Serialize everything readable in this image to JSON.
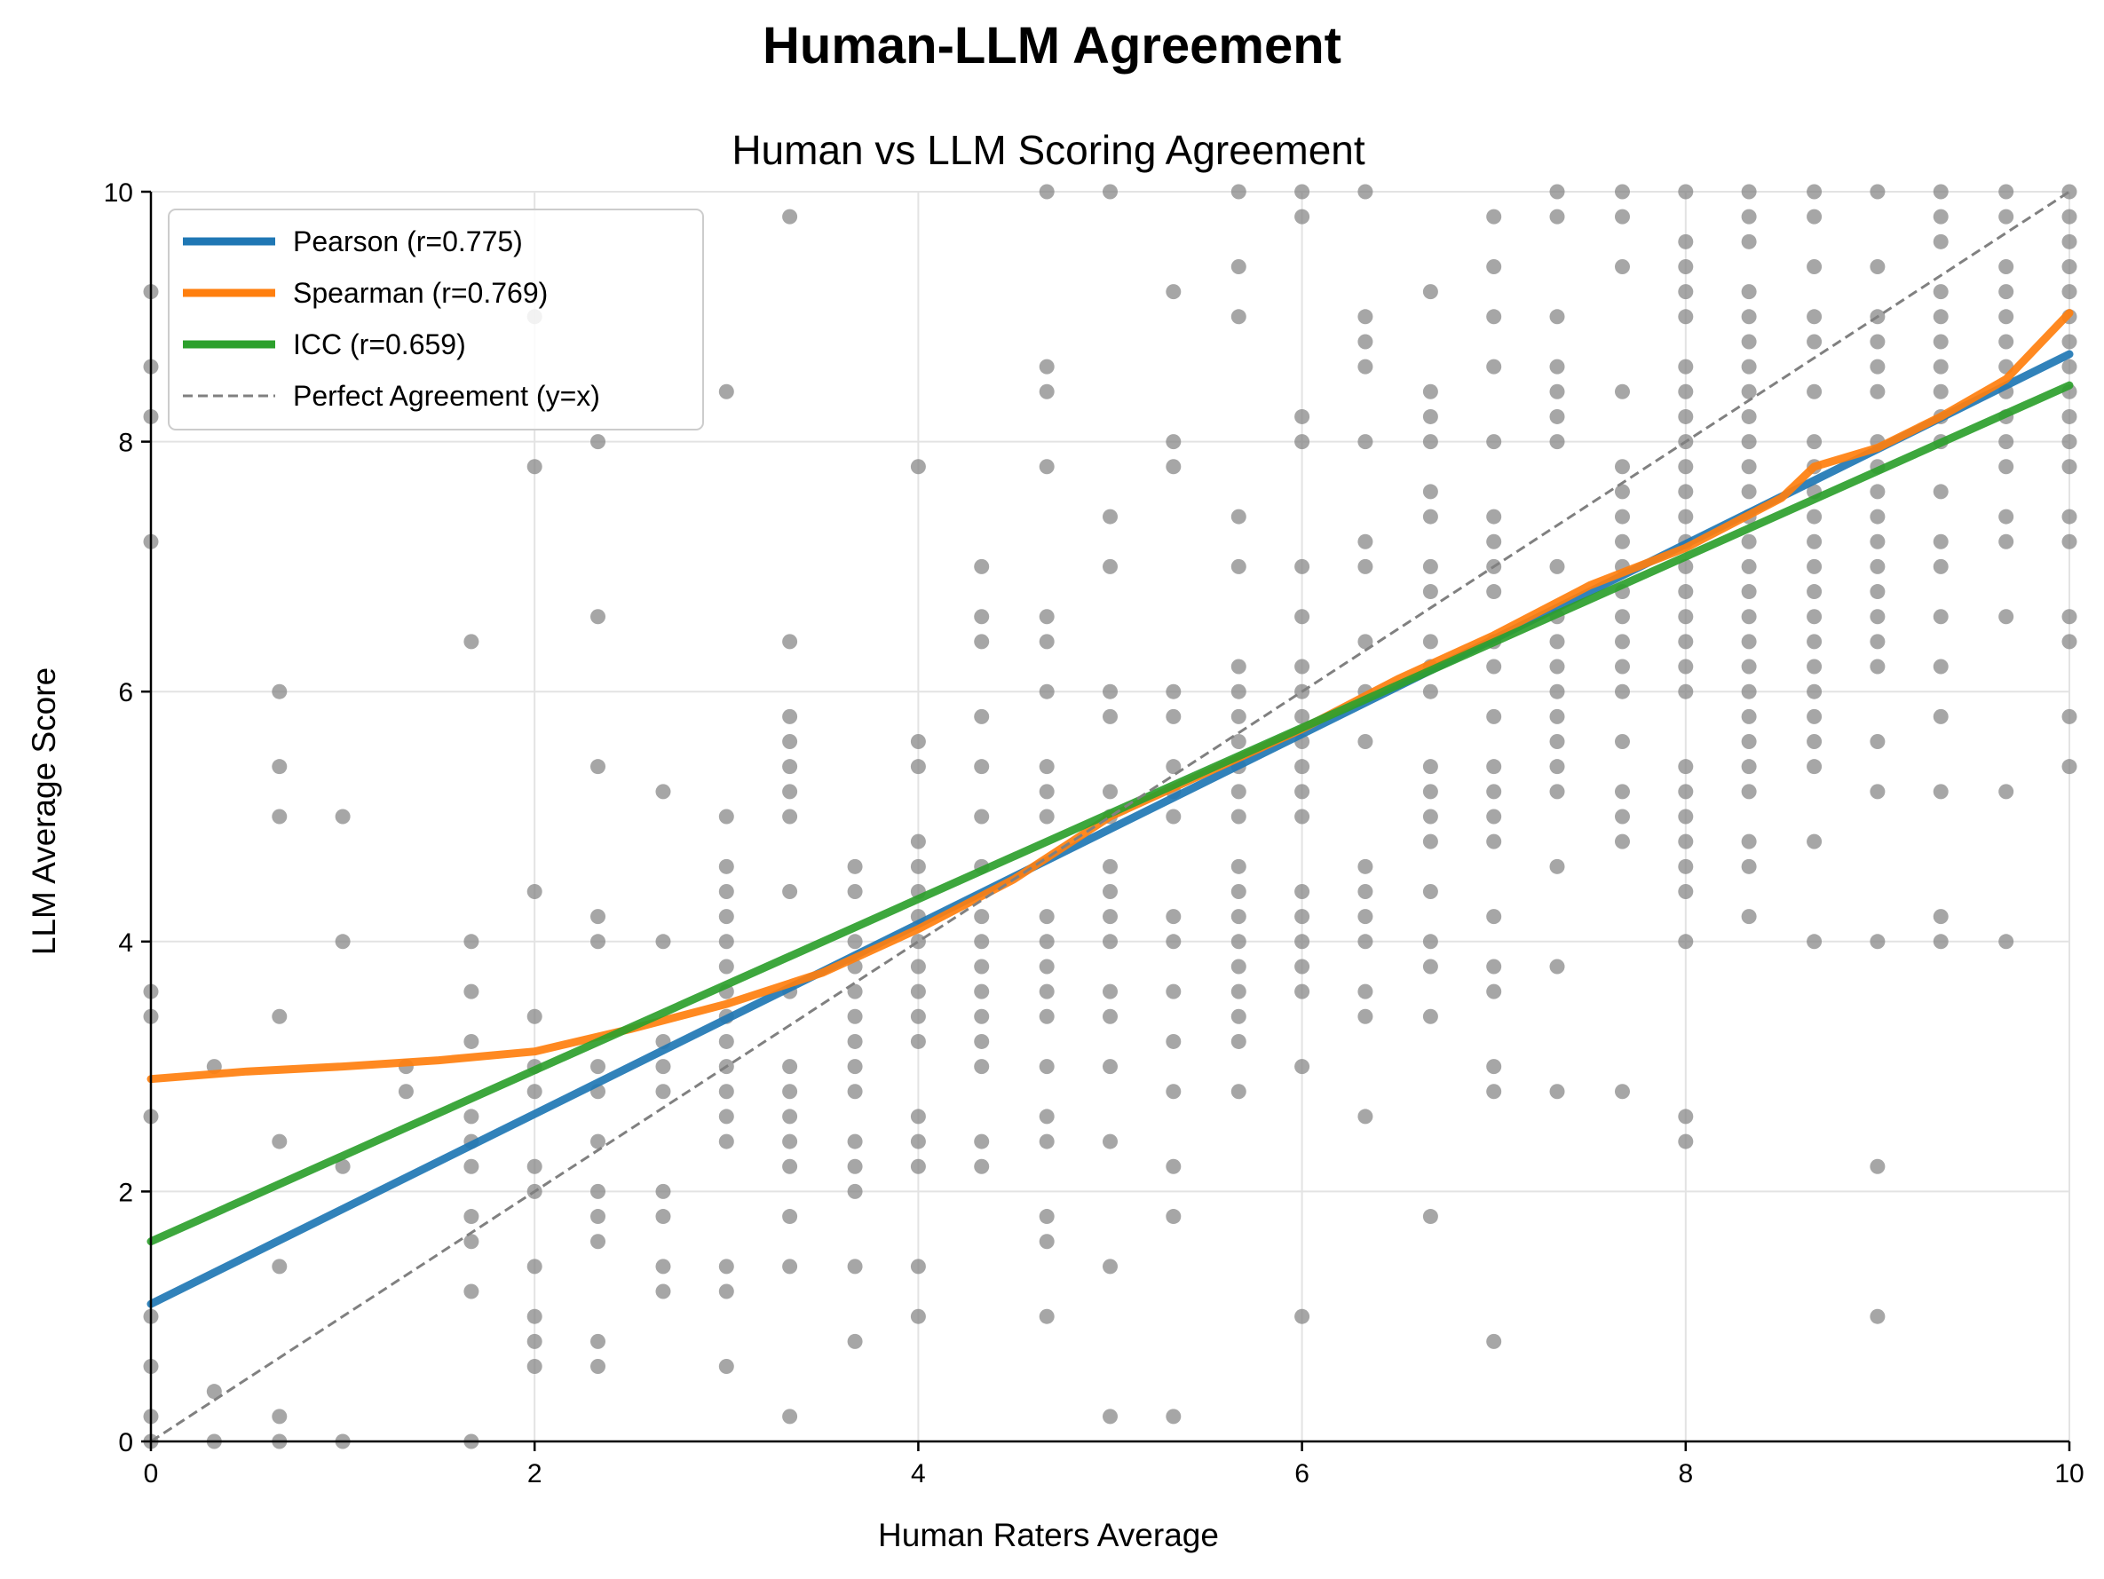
{
  "figure_title": "Human-LLM Agreement",
  "chart_data": {
    "type": "scatter",
    "title": "Human vs LLM Scoring Agreement",
    "xlabel": "Human Raters Average",
    "ylabel": "LLM Average Score",
    "xlim": [
      0,
      10
    ],
    "ylim": [
      0,
      10
    ],
    "xticks": [
      "0",
      "2",
      "4",
      "6",
      "8",
      "10"
    ],
    "yticks": [
      "0",
      "2",
      "4",
      "6",
      "8",
      "10"
    ],
    "grid": true,
    "legend_position": "upper-left",
    "points": {
      "name": "",
      "color": "#808080",
      "x_levels": [
        0,
        0.33,
        0.67,
        1,
        1.33,
        1.67,
        2,
        2.33,
        2.67,
        3,
        3.33,
        3.67,
        4,
        4.33,
        4.67,
        5,
        5.33,
        5.67,
        6,
        6.33,
        6.67,
        7,
        7.33,
        7.67,
        8,
        8.33,
        8.67,
        9,
        9.33,
        9.67,
        10
      ],
      "y_values": [
        [
          0,
          0.2,
          0.6,
          1.0,
          2.6,
          3.4,
          3.6,
          7.2,
          8.2,
          8.6,
          9.2
        ],
        [
          0,
          0.4,
          3.0
        ],
        [
          0,
          0.2,
          1.4,
          2.4,
          3.4,
          5.0,
          5.4,
          6.0
        ],
        [
          0,
          2.2,
          4.0,
          5.0
        ],
        [
          2.8,
          3.0
        ],
        [
          0,
          1.2,
          1.6,
          1.8,
          2.2,
          2.4,
          2.6,
          3.2,
          3.6,
          4.0,
          6.4
        ],
        [
          0.6,
          0.8,
          1.0,
          1.4,
          2.0,
          2.2,
          2.8,
          3.0,
          3.4,
          4.4,
          7.8,
          9.0
        ],
        [
          0.6,
          0.8,
          1.6,
          1.8,
          2.0,
          2.4,
          2.8,
          3.0,
          4.0,
          4.2,
          5.4,
          6.6,
          8.0
        ],
        [
          1.2,
          1.4,
          1.8,
          2.0,
          2.8,
          3.0,
          3.2,
          4.0,
          5.2
        ],
        [
          0.6,
          1.2,
          1.4,
          2.4,
          2.6,
          2.8,
          3.0,
          3.2,
          3.4,
          3.6,
          3.8,
          4.0,
          4.2,
          4.4,
          4.6,
          5.0,
          8.4
        ],
        [
          0.2,
          1.4,
          1.8,
          2.2,
          2.4,
          2.6,
          2.8,
          3.0,
          3.6,
          4.4,
          5.0,
          5.2,
          5.4,
          5.6,
          5.8,
          6.4,
          9.8
        ],
        [
          0.8,
          1.4,
          2.0,
          2.2,
          2.4,
          2.8,
          3.0,
          3.2,
          3.4,
          3.6,
          3.8,
          4.0,
          4.4,
          4.6
        ],
        [
          1.0,
          1.4,
          2.2,
          2.4,
          2.6,
          3.2,
          3.4,
          3.6,
          3.8,
          4.0,
          4.2,
          4.4,
          4.6,
          4.8,
          5.4,
          5.6,
          7.8
        ],
        [
          2.2,
          2.4,
          3.0,
          3.2,
          3.4,
          3.6,
          3.8,
          4.0,
          4.2,
          4.6,
          5.0,
          5.4,
          5.8,
          6.4,
          6.6,
          7.0
        ],
        [
          1.0,
          1.6,
          1.8,
          2.4,
          2.6,
          3.0,
          3.4,
          3.6,
          3.8,
          4.0,
          4.2,
          5.0,
          5.2,
          5.4,
          6.0,
          6.4,
          6.6,
          7.8,
          8.4,
          8.6,
          10.0
        ],
        [
          0.2,
          1.4,
          2.4,
          3.0,
          3.4,
          3.6,
          4.0,
          4.2,
          4.4,
          4.6,
          5.0,
          5.2,
          5.8,
          6.0,
          7.0,
          7.4,
          10.0
        ],
        [
          0.2,
          1.8,
          2.2,
          2.8,
          3.2,
          3.6,
          4.0,
          4.2,
          5.0,
          5.2,
          5.4,
          5.8,
          6.0,
          7.8,
          8.0,
          9.2
        ],
        [
          2.8,
          3.2,
          3.4,
          3.6,
          3.8,
          4.0,
          4.2,
          4.4,
          4.6,
          5.0,
          5.2,
          5.4,
          5.6,
          5.8,
          6.0,
          6.2,
          7.0,
          7.4,
          9.0,
          9.4,
          10.0
        ],
        [
          1.0,
          3.0,
          3.6,
          3.8,
          4.0,
          4.2,
          4.4,
          5.0,
          5.2,
          5.4,
          5.6,
          5.8,
          6.0,
          6.2,
          6.6,
          7.0,
          8.0,
          8.2,
          9.8,
          10.0
        ],
        [
          2.6,
          3.4,
          3.6,
          4.0,
          4.2,
          4.4,
          4.6,
          5.6,
          6.0,
          6.4,
          7.0,
          7.2,
          8.0,
          8.6,
          8.8,
          9.0,
          10.0
        ],
        [
          1.8,
          3.4,
          3.8,
          4.0,
          4.4,
          4.8,
          5.0,
          5.2,
          5.4,
          6.0,
          6.2,
          6.4,
          6.8,
          7.0,
          7.4,
          7.6,
          8.0,
          8.2,
          8.4,
          9.2
        ],
        [
          0.8,
          2.8,
          3.0,
          3.6,
          3.8,
          4.2,
          4.8,
          5.0,
          5.2,
          5.4,
          5.8,
          6.2,
          6.4,
          6.8,
          7.0,
          7.2,
          7.4,
          8.0,
          8.6,
          9.0,
          9.4,
          9.8
        ],
        [
          2.8,
          3.8,
          4.6,
          5.2,
          5.4,
          5.6,
          5.8,
          6.0,
          6.2,
          6.4,
          6.6,
          7.0,
          8.0,
          8.2,
          8.4,
          8.6,
          9.0,
          9.8,
          10.0
        ],
        [
          2.8,
          4.8,
          5.0,
          5.2,
          5.6,
          6.0,
          6.2,
          6.4,
          6.6,
          6.8,
          7.0,
          7.2,
          7.4,
          7.6,
          7.8,
          8.4,
          9.4,
          9.8,
          10.0
        ],
        [
          2.4,
          2.6,
          4.0,
          4.4,
          4.6,
          4.8,
          5.0,
          5.2,
          5.4,
          6.0,
          6.2,
          6.4,
          6.6,
          6.8,
          7.0,
          7.2,
          7.4,
          7.6,
          7.8,
          8.0,
          8.2,
          8.4,
          8.6,
          9.0,
          9.2,
          9.4,
          9.6,
          10.0
        ],
        [
          4.2,
          4.6,
          4.8,
          5.2,
          5.4,
          5.6,
          5.8,
          6.0,
          6.2,
          6.4,
          6.6,
          6.8,
          7.0,
          7.2,
          7.4,
          7.6,
          7.8,
          8.0,
          8.2,
          8.4,
          8.6,
          8.8,
          9.0,
          9.2,
          9.6,
          9.8,
          10.0
        ],
        [
          4.0,
          4.8,
          5.4,
          5.6,
          5.8,
          6.0,
          6.2,
          6.4,
          6.6,
          6.8,
          7.0,
          7.2,
          7.4,
          7.6,
          7.8,
          8.0,
          8.4,
          8.8,
          9.0,
          9.4,
          9.8,
          10.0
        ],
        [
          1.0,
          2.2,
          4.0,
          5.2,
          5.6,
          6.2,
          6.4,
          6.6,
          6.8,
          7.0,
          7.2,
          7.4,
          7.6,
          7.8,
          8.0,
          8.4,
          8.6,
          8.8,
          9.0,
          9.4,
          10.0
        ],
        [
          4.0,
          4.2,
          5.2,
          5.8,
          6.2,
          6.6,
          7.0,
          7.2,
          7.6,
          8.0,
          8.2,
          8.4,
          8.6,
          8.8,
          9.0,
          9.2,
          9.6,
          9.8,
          10.0
        ],
        [
          4.0,
          5.2,
          6.6,
          7.2,
          7.4,
          7.8,
          8.0,
          8.2,
          8.4,
          8.6,
          8.8,
          9.0,
          9.2,
          9.4,
          9.8,
          10.0
        ],
        [
          5.4,
          5.8,
          6.4,
          6.6,
          7.2,
          7.4,
          7.8,
          8.0,
          8.2,
          8.4,
          8.6,
          8.8,
          9.0,
          9.2,
          9.4,
          9.6,
          9.8,
          10.0
        ]
      ]
    },
    "series": [
      {
        "name": "Pearson (r=0.775)",
        "style": "solid",
        "color": "#1f77b4",
        "x": [
          0,
          10
        ],
        "y": [
          1.1,
          8.7
        ]
      },
      {
        "name": "Spearman (r=0.769)",
        "style": "solid",
        "color": "#ff7f0e",
        "x": [
          0,
          0.5,
          1,
          1.5,
          2,
          2.5,
          3,
          3.5,
          4,
          4.5,
          5,
          5.5,
          6,
          6.5,
          7,
          7.5,
          8,
          8.5,
          8.67,
          9,
          9.33,
          9.67,
          10
        ],
        "y": [
          2.9,
          2.96,
          3.0,
          3.05,
          3.12,
          3.3,
          3.5,
          3.75,
          4.1,
          4.5,
          5.0,
          5.35,
          5.7,
          6.1,
          6.45,
          6.85,
          7.15,
          7.55,
          7.8,
          7.95,
          8.2,
          8.5,
          9.03
        ]
      },
      {
        "name": "ICC (r=0.659)",
        "style": "solid",
        "color": "#2ca02c",
        "x": [
          0,
          10
        ],
        "y": [
          1.6,
          8.45
        ]
      },
      {
        "name": "Perfect Agreement (y=x)",
        "style": "dashed",
        "color": "#808080",
        "x": [
          0,
          10
        ],
        "y": [
          0,
          10
        ]
      }
    ]
  }
}
